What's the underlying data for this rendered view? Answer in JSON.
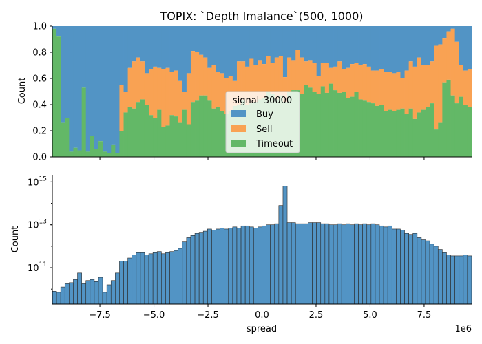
{
  "chart_data": [
    {
      "type": "area",
      "title": "TOPIX: `Depth Imalance`(500, 1000)",
      "xlabel": "",
      "ylabel": "Count",
      "ylim": [
        0,
        1
      ],
      "xlim": [
        -9700000,
        9700000
      ],
      "yticks": [
        "0.0",
        "0.2",
        "0.4",
        "0.6",
        "0.8",
        "1.0"
      ],
      "stacked_normalized": true,
      "legend": {
        "title": "signal_30000",
        "placement": "center",
        "entries": [
          "Buy",
          "Sell",
          "Timeout"
        ]
      },
      "bin_start": -9700000,
      "bin_width": 194000,
      "series": [
        {
          "name": "Buy",
          "color": "#5294c5"
        },
        {
          "name": "Sell",
          "color": "#f9a253"
        },
        {
          "name": "Timeout",
          "color": "#63b867",
          "values": [
            0.98,
            0.92,
            0.26,
            0.3,
            0.04,
            0.07,
            0.05,
            0.53,
            0.04,
            0.16,
            0.06,
            0.12,
            0.04,
            0.03,
            0.09,
            0.03,
            0.2,
            0.34,
            0.38,
            0.37,
            0.42,
            0.44,
            0.4,
            0.32,
            0.3,
            0.36,
            0.23,
            0.24,
            0.32,
            0.31,
            0.26,
            0.36,
            0.25,
            0.42,
            0.43,
            0.47,
            0.47,
            0.43,
            0.37,
            0.38,
            0.35,
            0.33,
            0.35,
            0.39,
            0.4,
            0.43,
            0.4,
            0.41,
            0.42,
            0.44,
            0.45,
            0.5,
            0.48,
            0.44,
            0.47,
            0.42,
            0.5,
            0.51,
            0.51,
            0.48,
            0.55,
            0.53,
            0.5,
            0.48,
            0.54,
            0.49,
            0.56,
            0.51,
            0.49,
            0.5,
            0.45,
            0.46,
            0.5,
            0.44,
            0.43,
            0.42,
            0.41,
            0.39,
            0.4,
            0.35,
            0.36,
            0.35,
            0.36,
            0.37,
            0.33,
            0.37,
            0.29,
            0.34,
            0.36,
            0.38,
            0.41,
            0.21,
            0.26,
            0.57,
            0.59,
            0.47,
            0.41,
            0.46,
            0.4,
            0.38
          ]
        },
        {
          "name": "Sell_top",
          "values": [
            0.98,
            0.92,
            0.26,
            0.3,
            0.04,
            0.07,
            0.05,
            0.53,
            0.04,
            0.16,
            0.06,
            0.12,
            0.04,
            0.03,
            0.09,
            0.03,
            0.55,
            0.5,
            0.68,
            0.73,
            0.76,
            0.73,
            0.64,
            0.67,
            0.69,
            0.68,
            0.67,
            0.68,
            0.65,
            0.66,
            0.58,
            0.5,
            0.64,
            0.81,
            0.8,
            0.78,
            0.76,
            0.68,
            0.7,
            0.65,
            0.64,
            0.6,
            0.62,
            0.58,
            0.73,
            0.73,
            0.69,
            0.75,
            0.7,
            0.74,
            0.71,
            0.77,
            0.72,
            0.76,
            0.77,
            0.61,
            0.76,
            0.74,
            0.82,
            0.76,
            0.73,
            0.74,
            0.72,
            0.62,
            0.72,
            0.72,
            0.68,
            0.69,
            0.73,
            0.67,
            0.68,
            0.71,
            0.72,
            0.7,
            0.71,
            0.69,
            0.66,
            0.66,
            0.67,
            0.65,
            0.65,
            0.64,
            0.65,
            0.6,
            0.66,
            0.73,
            0.69,
            0.76,
            0.7,
            0.7,
            0.73,
            0.85,
            0.86,
            0.91,
            0.96,
            0.98,
            0.88,
            0.7,
            0.66,
            0.67
          ]
        }
      ]
    },
    {
      "type": "bar",
      "xlabel": "spread",
      "ylabel": "Count",
      "yscale": "log",
      "ylim": [
        2000000000.0,
        2000000000000000.0
      ],
      "xlim": [
        -9700000,
        9700000
      ],
      "x_ticks": [
        "−7.5",
        "−5.0",
        "−2.5",
        "0.0",
        "2.5",
        "5.0",
        "7.5"
      ],
      "x_offset_label": "1e6",
      "y_ticks": [
        "10^11",
        "10^13",
        "10^15"
      ],
      "bin_start": -9700000,
      "bin_width": 194000,
      "color": "#5294c5",
      "log10_values": [
        9.9,
        9.85,
        10.1,
        10.25,
        10.3,
        10.45,
        10.75,
        10.25,
        10.4,
        10.45,
        10.35,
        10.55,
        9.85,
        10.2,
        10.4,
        10.75,
        11.3,
        11.3,
        11.45,
        11.6,
        11.7,
        11.7,
        11.6,
        11.65,
        11.7,
        11.75,
        11.65,
        11.7,
        11.75,
        11.8,
        11.9,
        12.2,
        12.4,
        12.5,
        12.6,
        12.65,
        12.7,
        12.8,
        12.75,
        12.8,
        12.85,
        12.8,
        12.85,
        12.9,
        12.85,
        12.95,
        12.95,
        12.9,
        12.85,
        12.9,
        12.95,
        13.0,
        13.0,
        13.05,
        13.9,
        14.8,
        13.1,
        13.1,
        13.05,
        13.05,
        13.05,
        13.1,
        13.1,
        13.1,
        13.05,
        13.05,
        13.0,
        13.0,
        13.05,
        13.0,
        13.05,
        13.0,
        13.05,
        13.0,
        13.05,
        13.0,
        13.05,
        13.0,
        12.95,
        12.9,
        12.95,
        12.8,
        12.8,
        12.75,
        12.6,
        12.55,
        12.6,
        12.4,
        12.3,
        12.25,
        12.1,
        12.0,
        11.85,
        11.7,
        11.6,
        11.55,
        11.55,
        11.55,
        11.6,
        11.55
      ]
    }
  ]
}
